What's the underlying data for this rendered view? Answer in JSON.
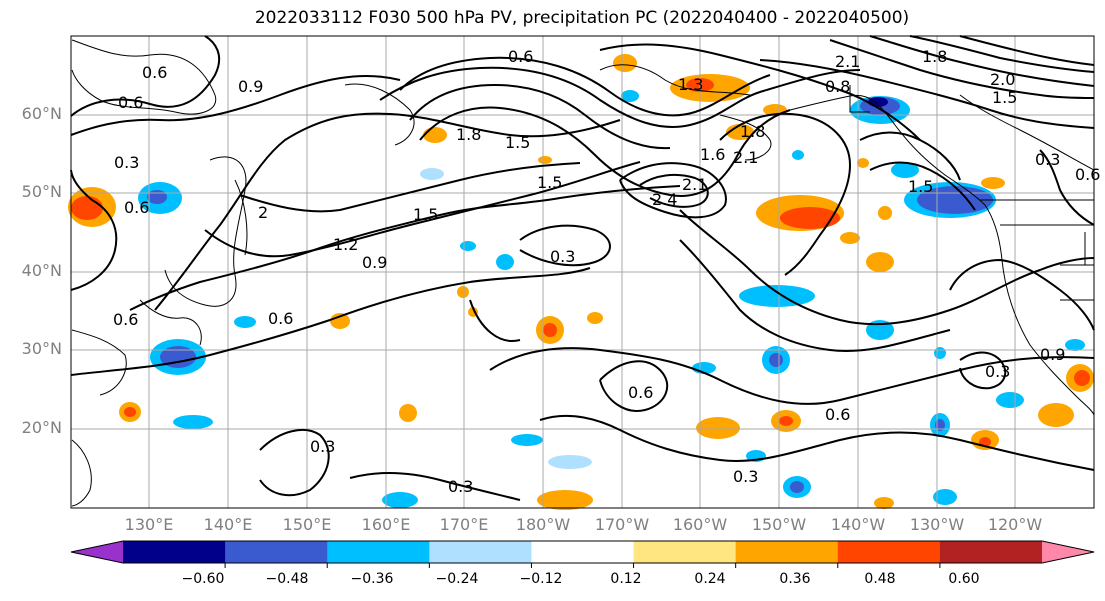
{
  "title": "2022033112 F030 500 hPa PV, precipitation PC (2022040400 - 2022040500)",
  "lat_labels": [
    "60°N",
    "50°N",
    "40°N",
    "30°N",
    "20°N"
  ],
  "lon_labels": [
    "130°E",
    "140°E",
    "150°E",
    "160°E",
    "170°E",
    "180°W",
    "170°W",
    "160°W",
    "150°W",
    "140°W",
    "130°W",
    "120°W"
  ],
  "colorbar": {
    "colors": [
      "#9932cc",
      "#00008b",
      "#3a5bd0",
      "#00bfff",
      "#b0e0ff",
      "#ffffff",
      "#ffe680",
      "#ffa500",
      "#ff4500",
      "#b22222",
      "#ff88aa"
    ],
    "tick_labels": [
      "−0.60",
      "−0.48",
      "−0.36",
      "−0.24",
      "−0.12",
      "0.12",
      "0.24",
      "0.36",
      "0.48",
      "0.60"
    ]
  },
  "contour_labels": [
    "0.9",
    "0.6",
    "0.6",
    "0.3",
    "0.6",
    "1.8",
    "1.5",
    "0.6",
    "1.3",
    "2.1",
    "0.8",
    "1.8",
    "2.0",
    "1.5",
    "1.5",
    "1.8",
    "1.5",
    "2.4",
    "2.1",
    "2.1",
    "1.6",
    "1.5",
    "2",
    "1.2",
    "0.9",
    "0.3",
    "0.6",
    "0.6",
    "0.6",
    "0.3",
    "0.3",
    "0.6",
    "0.3",
    "0.3",
    "0.6",
    "0.9",
    "0.3"
  ]
}
